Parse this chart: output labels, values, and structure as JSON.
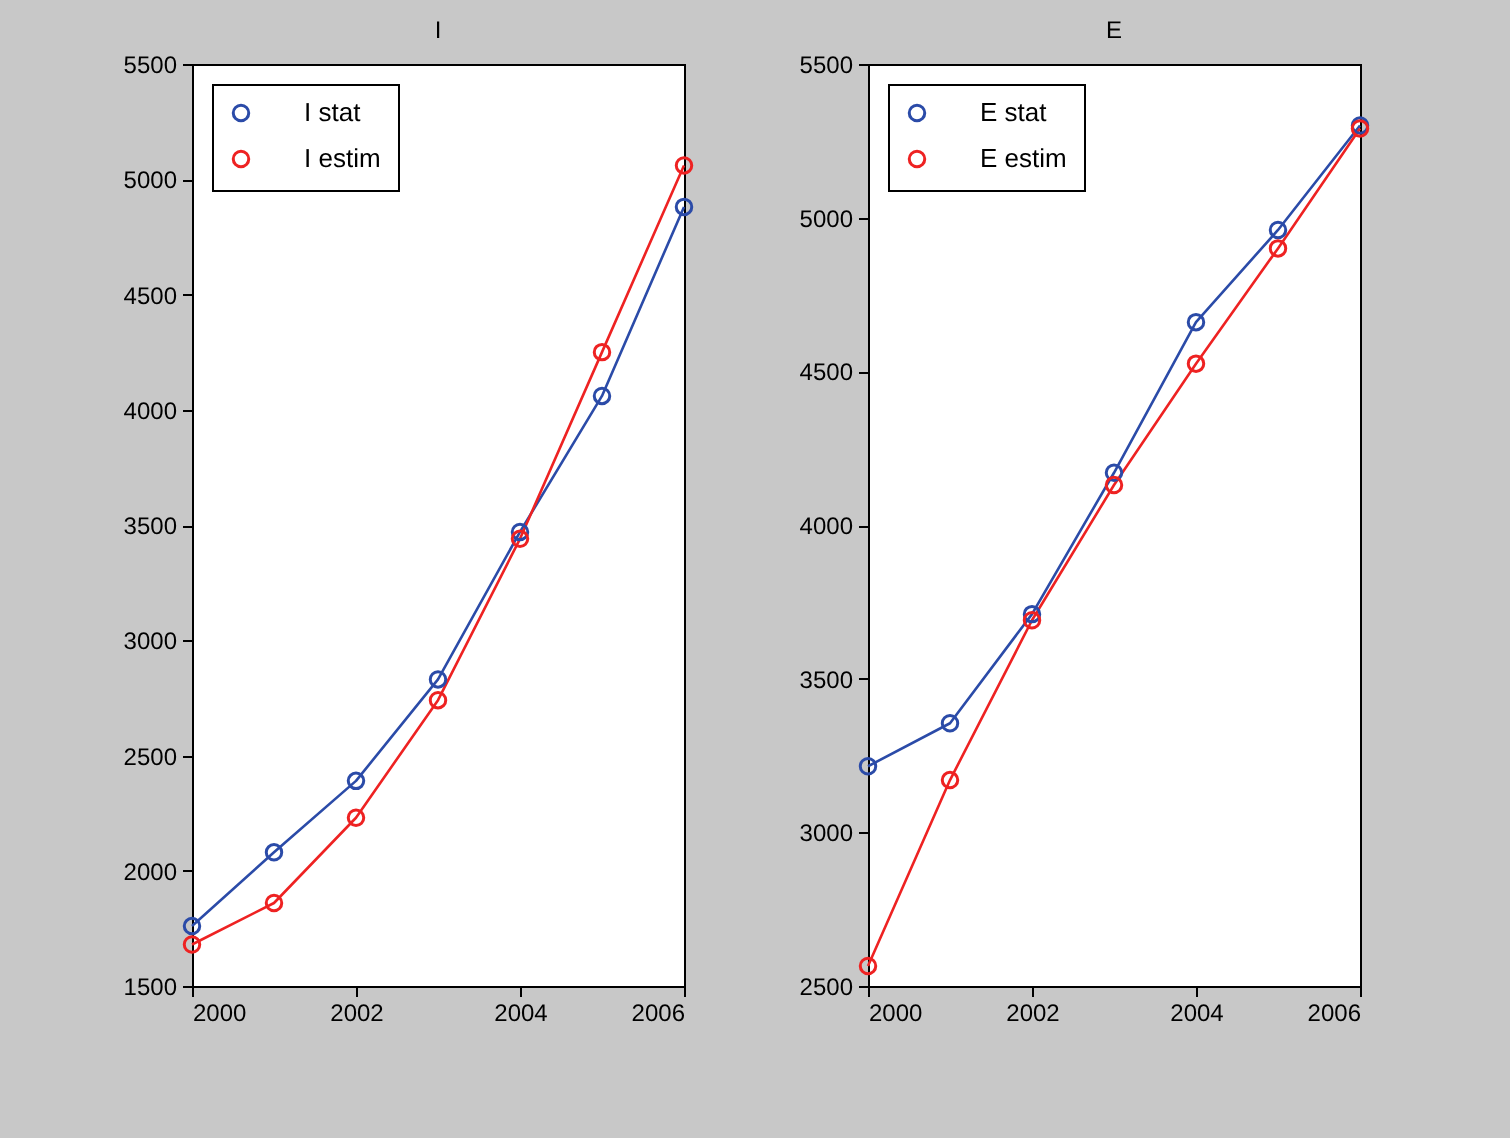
{
  "chart_data": [
    {
      "type": "line",
      "title": "I",
      "x": [
        2000,
        2001,
        2002,
        2003,
        2004,
        2005,
        2006
      ],
      "xlim": [
        2000,
        2006
      ],
      "xticks": [
        2000,
        2002,
        2004,
        2006
      ],
      "ylim": [
        1500,
        5500
      ],
      "yticks": [
        1500,
        2000,
        2500,
        3000,
        3500,
        4000,
        4500,
        5000,
        5500
      ],
      "marker": "circle",
      "legend": "top left",
      "series": [
        {
          "name": "I stat",
          "color": "#2b4ba8",
          "values": [
            1760,
            2080,
            2390,
            2830,
            3470,
            4060,
            4880
          ]
        },
        {
          "name": "I estim",
          "color": "#ee2222",
          "values": [
            1680,
            1860,
            2230,
            2740,
            3440,
            4250,
            5060
          ]
        }
      ]
    },
    {
      "type": "line",
      "title": "E",
      "x": [
        2000,
        2001,
        2002,
        2003,
        2004,
        2005,
        2006
      ],
      "xlim": [
        2000,
        2006
      ],
      "xticks": [
        2000,
        2002,
        2004,
        2006
      ],
      "ylim": [
        2500,
        5500
      ],
      "yticks": [
        2500,
        3000,
        3500,
        4000,
        4500,
        5000,
        5500
      ],
      "marker": "circle",
      "legend": "top left",
      "series": [
        {
          "name": "E stat",
          "color": "#2b4ba8",
          "values": [
            3215,
            3355,
            3710,
            4170,
            4660,
            4960,
            5300
          ]
        },
        {
          "name": "E estim",
          "color": "#ee2222",
          "values": [
            2565,
            3170,
            3690,
            4130,
            4525,
            4900,
            5290
          ]
        }
      ]
    }
  ]
}
